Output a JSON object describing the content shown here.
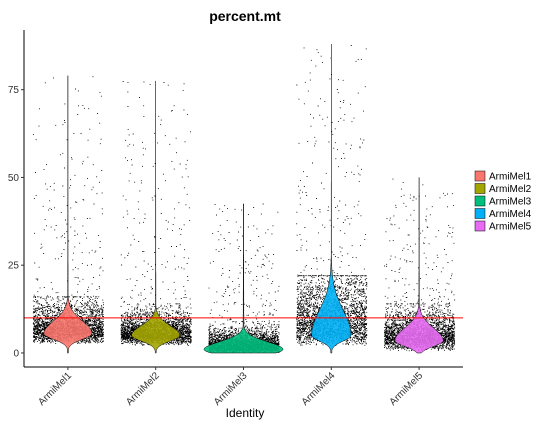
{
  "chart_data": {
    "type": "violin",
    "title": "percent.mt",
    "xlabel": "Identity",
    "ylabel": "",
    "ylim": [
      -4,
      92
    ],
    "yticks": [
      0,
      25,
      50,
      75
    ],
    "categories": [
      "ArmiMel1",
      "ArmiMel2",
      "ArmiMel3",
      "ArmiMel4",
      "ArmiMel5"
    ],
    "series": [
      {
        "name": "ArmiMel1",
        "color": "#F8766D",
        "median": 5.5,
        "max": 79,
        "dense_upper": 12,
        "max_width": 0.55
      },
      {
        "name": "ArmiMel2",
        "color": "#A3A500",
        "median": 5.0,
        "max": 77.5,
        "dense_upper": 10,
        "max_width": 0.55
      },
      {
        "name": "ArmiMel3",
        "color": "#00BF7D",
        "median": 1.0,
        "max": 42.5,
        "dense_upper": 5,
        "max_width": 0.9
      },
      {
        "name": "ArmiMel4",
        "color": "#00B0F6",
        "median": 5.0,
        "max": 88,
        "dense_upper": 18,
        "max_width": 0.45
      },
      {
        "name": "ArmiMel5",
        "color": "#E76BF3",
        "median": 3.5,
        "max": 50,
        "dense_upper": 10,
        "max_width": 0.55
      }
    ],
    "hline": {
      "y": 10,
      "color": "#FF0000"
    },
    "legend": {
      "position": "right",
      "entries": [
        "ArmiMel1",
        "ArmiMel2",
        "ArmiMel3",
        "ArmiMel4",
        "ArmiMel5"
      ]
    },
    "grid": false
  }
}
